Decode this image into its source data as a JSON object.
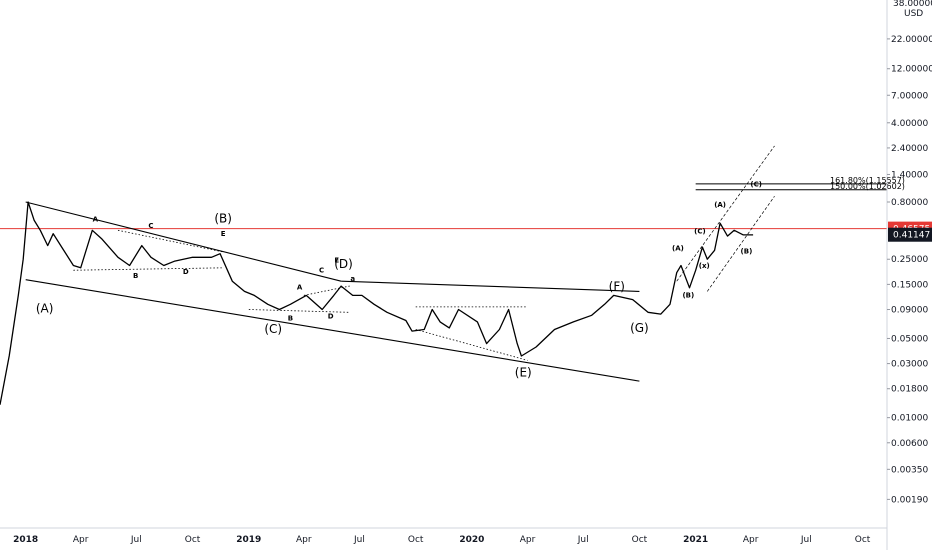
{
  "chart_data": {
    "type": "line",
    "currency": "USD",
    "y_scale": "log",
    "ylim": [
      0.0012,
      38
    ],
    "price_axis_top_label": "38.00000",
    "y_ticks": [
      "22.00000",
      "12.00000",
      "7.00000",
      "4.00000",
      "2.40000",
      "1.40000",
      "0.80000",
      "0.25000",
      "0.15000",
      "0.09000",
      "0.05000",
      "0.03000",
      "0.01800",
      "0.01000",
      "0.00600",
      "0.00350",
      "0.00190"
    ],
    "x_ticks": [
      {
        "label": "2018",
        "date": "2018-01-01",
        "bold": true
      },
      {
        "label": "Apr",
        "date": "2018-04-01",
        "bold": false
      },
      {
        "label": "Jul",
        "date": "2018-07-01",
        "bold": false
      },
      {
        "label": "Oct",
        "date": "2018-10-01",
        "bold": false
      },
      {
        "label": "2019",
        "date": "2019-01-01",
        "bold": true
      },
      {
        "label": "Apr",
        "date": "2019-04-01",
        "bold": false
      },
      {
        "label": "Jul",
        "date": "2019-07-01",
        "bold": false
      },
      {
        "label": "Oct",
        "date": "2019-10-01",
        "bold": false
      },
      {
        "label": "2020",
        "date": "2020-01-01",
        "bold": true
      },
      {
        "label": "Apr",
        "date": "2020-04-01",
        "bold": false
      },
      {
        "label": "Jul",
        "date": "2020-07-01",
        "bold": false
      },
      {
        "label": "Oct",
        "date": "2020-10-01",
        "bold": false
      },
      {
        "label": "2021",
        "date": "2021-01-01",
        "bold": true
      },
      {
        "label": "Apr",
        "date": "2021-04-01",
        "bold": false
      },
      {
        "label": "Jul",
        "date": "2021-07-01",
        "bold": false
      },
      {
        "label": "Oct",
        "date": "2021-10-01",
        "bold": false
      }
    ],
    "xlim": [
      "2017-11-20",
      "2021-11-10"
    ],
    "series": [
      {
        "points": [
          [
            "2017-11-20",
            0.013
          ],
          [
            "2017-12-05",
            0.035
          ],
          [
            "2017-12-20",
            0.12
          ],
          [
            "2017-12-28",
            0.25
          ],
          [
            "2018-01-05",
            0.8
          ],
          [
            "2018-01-15",
            0.55
          ],
          [
            "2018-01-25",
            0.45
          ],
          [
            "2018-02-06",
            0.33
          ],
          [
            "2018-02-15",
            0.42
          ],
          [
            "2018-03-01",
            0.32
          ],
          [
            "2018-03-20",
            0.22
          ],
          [
            "2018-04-01",
            0.21
          ],
          [
            "2018-04-20",
            0.45
          ],
          [
            "2018-05-05",
            0.38
          ],
          [
            "2018-06-01",
            0.26
          ],
          [
            "2018-06-20",
            0.22
          ],
          [
            "2018-07-10",
            0.33
          ],
          [
            "2018-07-25",
            0.26
          ],
          [
            "2018-08-15",
            0.22
          ],
          [
            "2018-09-01",
            0.24
          ],
          [
            "2018-10-01",
            0.26
          ],
          [
            "2018-11-01",
            0.26
          ],
          [
            "2018-11-15",
            0.28
          ],
          [
            "2018-12-05",
            0.16
          ],
          [
            "2018-12-25",
            0.13
          ],
          [
            "2019-01-10",
            0.12
          ],
          [
            "2019-02-01",
            0.1
          ],
          [
            "2019-02-20",
            0.09
          ],
          [
            "2019-03-10",
            0.1
          ],
          [
            "2019-04-05",
            0.12
          ],
          [
            "2019-05-01",
            0.09
          ],
          [
            "2019-05-20",
            0.12
          ],
          [
            "2019-06-01",
            0.145
          ],
          [
            "2019-06-20",
            0.12
          ],
          [
            "2019-07-05",
            0.12
          ],
          [
            "2019-07-25",
            0.1
          ],
          [
            "2019-08-15",
            0.085
          ],
          [
            "2019-09-15",
            0.072
          ],
          [
            "2019-09-25",
            0.058
          ],
          [
            "2019-10-15",
            0.06
          ],
          [
            "2019-10-28",
            0.09
          ],
          [
            "2019-11-10",
            0.07
          ],
          [
            "2019-11-25",
            0.062
          ],
          [
            "2019-12-10",
            0.09
          ],
          [
            "2020-01-10",
            0.07
          ],
          [
            "2020-01-25",
            0.045
          ],
          [
            "2020-02-15",
            0.06
          ],
          [
            "2020-03-01",
            0.09
          ],
          [
            "2020-03-15",
            0.045
          ],
          [
            "2020-03-22",
            0.035
          ],
          [
            "2020-04-15",
            0.042
          ],
          [
            "2020-05-15",
            0.06
          ],
          [
            "2020-06-15",
            0.07
          ],
          [
            "2020-07-15",
            0.08
          ],
          [
            "2020-08-05",
            0.1
          ],
          [
            "2020-08-20",
            0.12
          ],
          [
            "2020-09-20",
            0.11
          ],
          [
            "2020-10-15",
            0.085
          ],
          [
            "2020-11-05",
            0.082
          ],
          [
            "2020-11-20",
            0.1
          ],
          [
            "2020-12-01",
            0.19
          ],
          [
            "2020-12-08",
            0.22
          ],
          [
            "2020-12-22",
            0.14
          ],
          [
            "2021-01-01",
            0.2
          ],
          [
            "2021-01-12",
            0.32
          ],
          [
            "2021-01-20",
            0.25
          ],
          [
            "2021-02-01",
            0.3
          ],
          [
            "2021-02-10",
            0.52
          ],
          [
            "2021-02-22",
            0.4
          ],
          [
            "2021-03-05",
            0.45
          ],
          [
            "2021-03-20",
            0.41
          ],
          [
            "2021-04-05",
            0.41
          ]
        ]
      }
    ],
    "trendlines": [
      {
        "from": [
          "2018-01-01",
          0.8
        ],
        "to": [
          "2019-06-01",
          0.16
        ],
        "style": "solid"
      },
      {
        "from": [
          "2019-06-01",
          0.16
        ],
        "to": [
          "2020-10-01",
          0.13
        ],
        "style": "solid"
      },
      {
        "from": [
          "2018-01-01",
          0.165
        ],
        "to": [
          "2020-10-01",
          0.021
        ],
        "style": "solid"
      },
      {
        "from": [
          "2018-06-01",
          0.45
        ],
        "to": [
          "2018-11-20",
          0.29
        ],
        "style": "dotted"
      },
      {
        "from": [
          "2018-03-20",
          0.2
        ],
        "to": [
          "2018-11-20",
          0.21
        ],
        "style": "dotted"
      },
      {
        "from": [
          "2019-01-01",
          0.09
        ],
        "to": [
          "2019-06-15",
          0.085
        ],
        "style": "dotted"
      },
      {
        "from": [
          "2019-04-01",
          0.12
        ],
        "to": [
          "2019-06-15",
          0.145
        ],
        "style": "dotted"
      },
      {
        "from": [
          "2019-10-01",
          0.095
        ],
        "to": [
          "2020-04-01",
          0.095
        ],
        "style": "dotted"
      },
      {
        "from": [
          "2019-10-01",
          0.06
        ],
        "to": [
          "2020-04-01",
          0.032
        ],
        "style": "dotted"
      },
      {
        "from": [
          "2020-12-01",
          0.16
        ],
        "to": [
          "2021-05-10",
          2.5
        ],
        "style": "solid-thin"
      },
      {
        "from": [
          "2021-01-20",
          0.13
        ],
        "to": [
          "2021-05-10",
          0.9
        ],
        "style": "solid-thin"
      }
    ],
    "fib_lines": [
      {
        "label": "161.80%(1.15557)",
        "value": 1.155
      },
      {
        "label": "150.00%(1.02602)",
        "value": 1.026
      }
    ],
    "horizontal_lines": [
      {
        "value": 0.46575,
        "color": "#e53935"
      }
    ],
    "price_tags": [
      {
        "label": "0.46575",
        "value": 0.46575,
        "color": "#e53935"
      },
      {
        "label": "0.41147",
        "value": 0.41147,
        "color": "#131722"
      }
    ],
    "wave_labels": [
      {
        "text": "(A)",
        "date": "2018-02-01",
        "price": 0.085,
        "size": "big"
      },
      {
        "text": "(B)",
        "date": "2018-11-20",
        "price": 0.53,
        "size": "big"
      },
      {
        "text": "(C)",
        "date": "2019-02-10",
        "price": 0.056,
        "size": "big"
      },
      {
        "text": "(D)",
        "date": "2019-06-05",
        "price": 0.21,
        "size": "big"
      },
      {
        "text": "(E)",
        "date": "2020-03-25",
        "price": 0.023,
        "size": "big"
      },
      {
        "text": "(F)",
        "date": "2020-08-25",
        "price": 0.132,
        "size": "big"
      },
      {
        "text": "(G)",
        "date": "2020-10-01",
        "price": 0.057,
        "size": "big"
      },
      {
        "text": "A",
        "date": "2018-04-25",
        "price": 0.54,
        "size": "small"
      },
      {
        "text": "C",
        "date": "2018-07-25",
        "price": 0.47,
        "size": "small"
      },
      {
        "text": "B",
        "date": "2018-06-30",
        "price": 0.17,
        "size": "small"
      },
      {
        "text": "D",
        "date": "2018-09-20",
        "price": 0.185,
        "size": "small"
      },
      {
        "text": "E",
        "date": "2018-11-20",
        "price": 0.4,
        "size": "small"
      },
      {
        "text": "A",
        "date": "2019-03-25",
        "price": 0.135,
        "size": "small"
      },
      {
        "text": "B",
        "date": "2019-03-10",
        "price": 0.072,
        "size": "small"
      },
      {
        "text": "C",
        "date": "2019-04-30",
        "price": 0.19,
        "size": "small"
      },
      {
        "text": "D",
        "date": "2019-05-15",
        "price": 0.075,
        "size": "small"
      },
      {
        "text": "E",
        "date": "2019-05-25",
        "price": 0.235,
        "size": "small"
      },
      {
        "text": "a",
        "date": "2019-06-20",
        "price": 0.16,
        "size": "small"
      },
      {
        "text": "(A)",
        "date": "2020-12-03",
        "price": 0.3,
        "size": "small"
      },
      {
        "text": "(B)",
        "date": "2020-12-20",
        "price": 0.115,
        "size": "small"
      },
      {
        "text": "(C)",
        "date": "2021-01-08",
        "price": 0.42,
        "size": "small"
      },
      {
        "text": "(x)",
        "date": "2021-01-15",
        "price": 0.21,
        "size": "small"
      },
      {
        "text": "(A)",
        "date": "2021-02-10",
        "price": 0.72,
        "size": "small"
      },
      {
        "text": "(B)",
        "date": "2021-03-25",
        "price": 0.28,
        "size": "small"
      },
      {
        "text": "(C)",
        "date": "2021-04-10",
        "price": 1.1,
        "size": "small"
      }
    ]
  }
}
